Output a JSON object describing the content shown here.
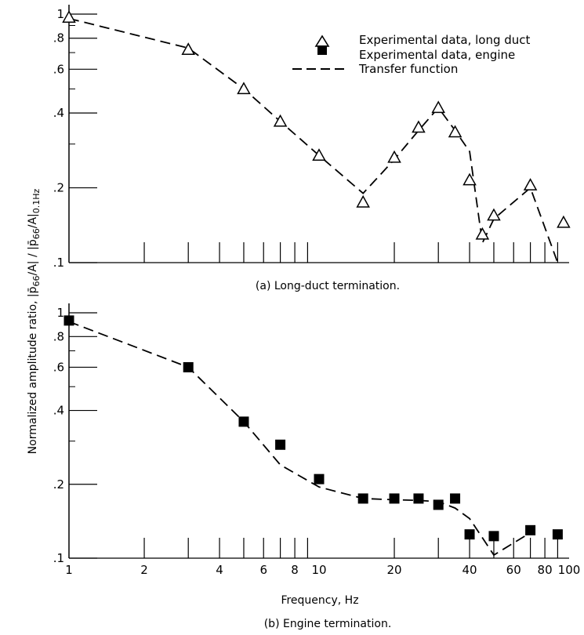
{
  "figure": {
    "ylabel_text": "Normalized amplitude ratio, |p̄",
    "ylabel_sub1": "66",
    "ylabel_mid": "/A| / |p̄",
    "ylabel_sub2": "66",
    "ylabel_mid2": "/A|",
    "ylabel_sub3": "0.1Hz",
    "xlabel": "Frequency, Hz"
  },
  "legend": {
    "entries": [
      {
        "label": "Experimental data, long duct",
        "marker": "open-triangle"
      },
      {
        "label": "Experimental data, engine",
        "marker": "filled-square"
      },
      {
        "label": "Transfer function",
        "marker": "dashed-line"
      }
    ]
  },
  "chart_data": [
    {
      "type": "scatter",
      "caption": "(a) Long-duct termination.",
      "xscale": "log",
      "yscale": "log",
      "xlim": [
        1,
        100
      ],
      "ylim": [
        0.1,
        1
      ],
      "ytick_labels": [
        {
          "value": 1,
          "label": "1"
        },
        {
          "value": 0.8,
          "label": ".8"
        },
        {
          "value": 0.6,
          "label": ".6"
        },
        {
          "value": 0.4,
          "label": ".4"
        },
        {
          "value": 0.2,
          "label": ".2"
        },
        {
          "value": 0.1,
          "label": ".1"
        }
      ],
      "minor_yticks": [
        0.9,
        0.7,
        0.5,
        0.3
      ],
      "xtick_marks": [
        2,
        3,
        4,
        5,
        6,
        7,
        8,
        9,
        20,
        30,
        40,
        50,
        60,
        70,
        80,
        90
      ],
      "series": [
        {
          "name": "Experimental data, long duct",
          "marker": "open-triangle",
          "points": [
            [
              1,
              0.97
            ],
            [
              3,
              0.72
            ],
            [
              5,
              0.5
            ],
            [
              7,
              0.37
            ],
            [
              10,
              0.27
            ],
            [
              15,
              0.175
            ],
            [
              20,
              0.265
            ],
            [
              25,
              0.35
            ],
            [
              30,
              0.42
            ],
            [
              35,
              0.335
            ],
            [
              40,
              0.215
            ],
            [
              45,
              0.13
            ],
            [
              50,
              0.155
            ],
            [
              70,
              0.205
            ],
            [
              95,
              0.145
            ]
          ]
        },
        {
          "name": "Transfer function",
          "marker": "dashed-line",
          "points": [
            [
              1,
              0.96
            ],
            [
              3,
              0.73
            ],
            [
              5,
              0.5
            ],
            [
              7,
              0.37
            ],
            [
              10,
              0.27
            ],
            [
              15,
              0.19
            ],
            [
              20,
              0.26
            ],
            [
              25,
              0.34
            ],
            [
              30,
              0.42
            ],
            [
              35,
              0.34
            ],
            [
              40,
              0.28
            ],
            [
              45,
              0.12
            ],
            [
              50,
              0.15
            ],
            [
              70,
              0.2
            ],
            [
              90,
              0.1
            ]
          ]
        }
      ]
    },
    {
      "type": "scatter",
      "caption": "(b) Engine termination.",
      "xscale": "log",
      "yscale": "log",
      "xlim": [
        1,
        100
      ],
      "ylim": [
        0.1,
        1
      ],
      "ytick_labels": [
        {
          "value": 1,
          "label": "1"
        },
        {
          "value": 0.8,
          "label": ".8"
        },
        {
          "value": 0.6,
          "label": ".6"
        },
        {
          "value": 0.4,
          "label": ".4"
        },
        {
          "value": 0.2,
          "label": ".2"
        },
        {
          "value": 0.1,
          "label": ".1"
        }
      ],
      "minor_yticks": [
        0.9,
        0.7,
        0.5,
        0.3
      ],
      "xtick_marks": [
        2,
        3,
        4,
        5,
        6,
        7,
        8,
        9,
        20,
        30,
        40,
        50,
        60,
        70,
        80,
        90
      ],
      "xtick_labels": [
        {
          "value": 1,
          "label": "1"
        },
        {
          "value": 2,
          "label": "2"
        },
        {
          "value": 4,
          "label": "4"
        },
        {
          "value": 6,
          "label": "6"
        },
        {
          "value": 8,
          "label": "8"
        },
        {
          "value": 10,
          "label": "10"
        },
        {
          "value": 20,
          "label": "20"
        },
        {
          "value": 40,
          "label": "40"
        },
        {
          "value": 60,
          "label": "60"
        },
        {
          "value": 80,
          "label": "80"
        },
        {
          "value": 100,
          "label": "100"
        }
      ],
      "series": [
        {
          "name": "Experimental data, engine",
          "marker": "filled-square",
          "points": [
            [
              1,
              0.93
            ],
            [
              3,
              0.6
            ],
            [
              5,
              0.36
            ],
            [
              7,
              0.29
            ],
            [
              10,
              0.21
            ],
            [
              15,
              0.175
            ],
            [
              20,
              0.175
            ],
            [
              25,
              0.175
            ],
            [
              30,
              0.165
            ],
            [
              35,
              0.175
            ],
            [
              40,
              0.125
            ],
            [
              50,
              0.123
            ],
            [
              70,
              0.13
            ],
            [
              90,
              0.125
            ]
          ]
        },
        {
          "name": "Transfer function",
          "marker": "dashed-line",
          "points": [
            [
              1,
              0.92
            ],
            [
              3,
              0.6
            ],
            [
              5,
              0.36
            ],
            [
              7,
              0.24
            ],
            [
              10,
              0.195
            ],
            [
              15,
              0.175
            ],
            [
              20,
              0.173
            ],
            [
              25,
              0.172
            ],
            [
              30,
              0.17
            ],
            [
              35,
              0.16
            ],
            [
              40,
              0.145
            ],
            [
              50,
              0.103
            ],
            [
              70,
              0.127
            ]
          ]
        }
      ]
    }
  ]
}
